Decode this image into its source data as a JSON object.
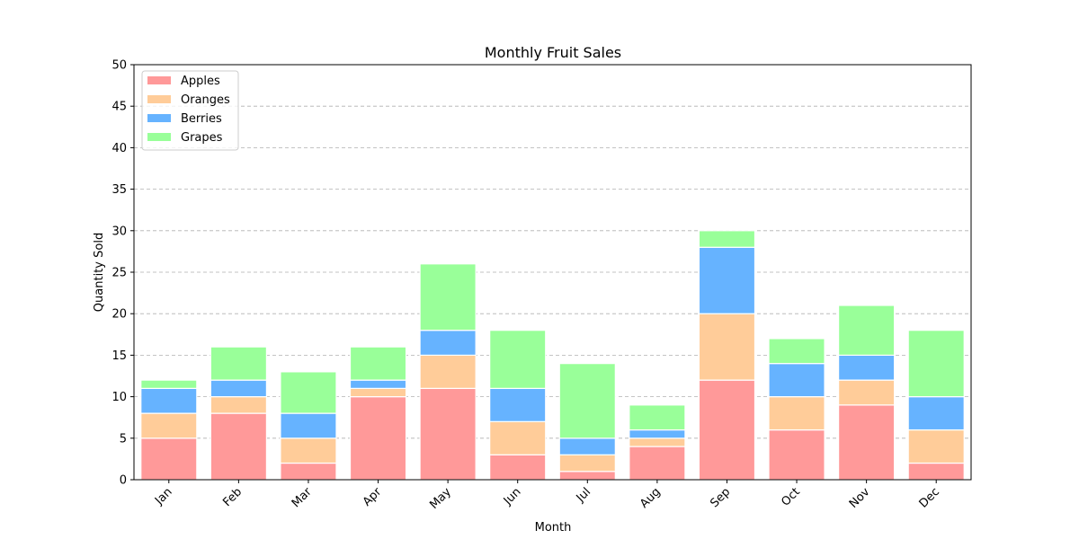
{
  "chart_data": {
    "type": "bar",
    "stacked": true,
    "title": "Monthly Fruit Sales",
    "xlabel": "Month",
    "ylabel": "Quantity Sold",
    "categories": [
      "Jan",
      "Feb",
      "Mar",
      "Apr",
      "May",
      "Jun",
      "Jul",
      "Aug",
      "Sep",
      "Oct",
      "Nov",
      "Dec"
    ],
    "series": [
      {
        "name": "Apples",
        "color": "#ff9999",
        "values": [
          5,
          8,
          2,
          10,
          11,
          3,
          1,
          4,
          12,
          6,
          9,
          2
        ]
      },
      {
        "name": "Oranges",
        "color": "#ffcc99",
        "values": [
          3,
          2,
          3,
          1,
          4,
          4,
          2,
          1,
          8,
          4,
          3,
          4
        ]
      },
      {
        "name": "Berries",
        "color": "#66b3ff",
        "values": [
          3,
          2,
          3,
          1,
          3,
          4,
          2,
          1,
          8,
          4,
          3,
          4
        ]
      },
      {
        "name": "Grapes",
        "color": "#99ff99",
        "values": [
          1,
          4,
          5,
          4,
          8,
          7,
          9,
          3,
          2,
          3,
          6,
          8
        ]
      }
    ],
    "ylim": [
      0,
      50
    ],
    "yticks": [
      0,
      5,
      10,
      15,
      20,
      25,
      30,
      35,
      40,
      45,
      50
    ],
    "grid": "y-dashed",
    "legend_position": "top-left",
    "xtick_rotation": 45
  }
}
